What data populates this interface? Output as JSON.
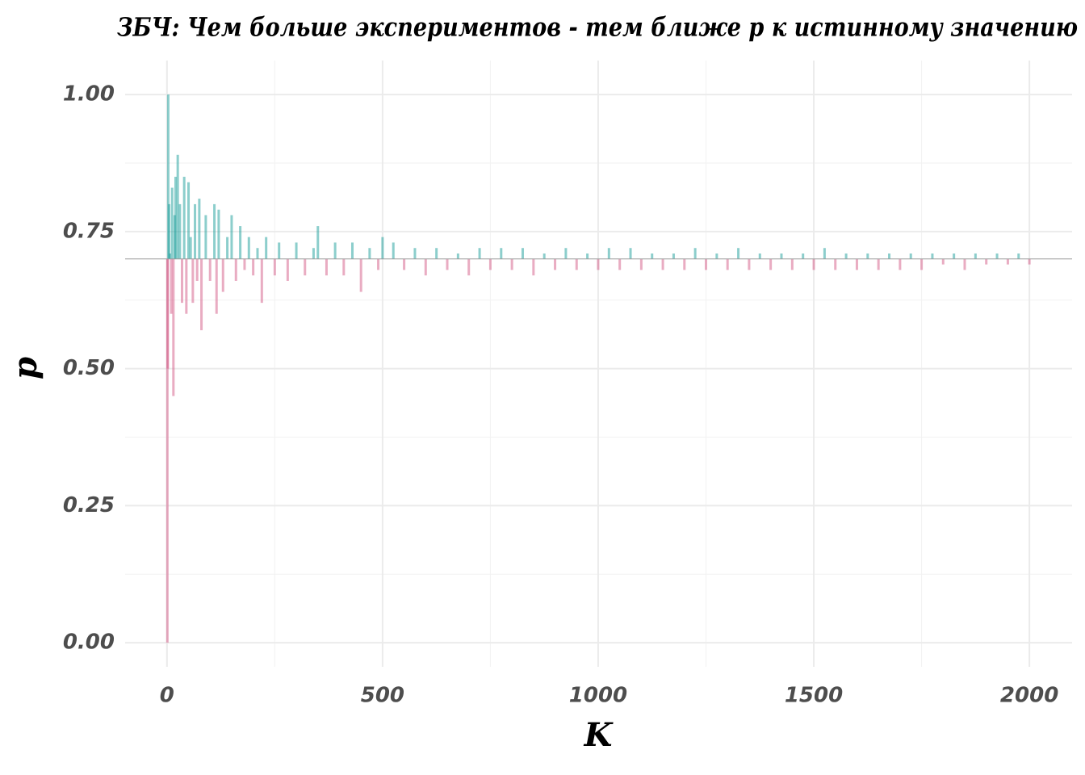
{
  "chart_data": {
    "type": "bar",
    "title": "ЗБЧ: Чем больше экспериментов - тем ближе p к истинному значению",
    "x_label": "K",
    "y_label": "p",
    "baseline": 0.7,
    "above_color": "#1a9e9a",
    "below_color": "#d45a86",
    "xlim": [
      -97,
      2099
    ],
    "ylim": [
      -0.044,
      1.062
    ],
    "xticks": [
      0,
      500,
      1000,
      1500,
      2000
    ],
    "yticks": [
      {
        "value": 0,
        "label": "0.00"
      },
      {
        "value": 0.25,
        "label": "0.25"
      },
      {
        "value": 0.5,
        "label": "0.50"
      },
      {
        "value": 0.75,
        "label": "0.75"
      },
      {
        "value": 1,
        "label": "1.00"
      }
    ],
    "xminor": [
      250,
      750,
      1250,
      1750
    ],
    "yminor": [
      0.125,
      0.375,
      0.625,
      0.875
    ],
    "grid": true,
    "x": [
      1,
      2,
      3,
      5,
      7,
      10,
      12,
      15,
      18,
      20,
      25,
      30,
      35,
      40,
      45,
      50,
      55,
      60,
      65,
      70,
      75,
      80,
      90,
      100,
      110,
      115,
      120,
      130,
      140,
      150,
      160,
      170,
      180,
      190,
      200,
      210,
      220,
      230,
      250,
      260,
      280,
      300,
      320,
      340,
      350,
      370,
      390,
      410,
      430,
      450,
      470,
      490,
      500,
      525,
      550,
      575,
      600,
      625,
      650,
      675,
      700,
      725,
      750,
      775,
      800,
      825,
      850,
      875,
      900,
      925,
      950,
      975,
      1000,
      1025,
      1050,
      1075,
      1100,
      1125,
      1150,
      1175,
      1200,
      1225,
      1250,
      1275,
      1300,
      1325,
      1350,
      1375,
      1400,
      1425,
      1450,
      1475,
      1500,
      1525,
      1550,
      1575,
      1600,
      1625,
      1650,
      1675,
      1700,
      1725,
      1750,
      1775,
      1800,
      1825,
      1850,
      1875,
      1900,
      1925,
      1950,
      1975,
      2000
    ],
    "values": [
      0.0,
      0.5,
      1.0,
      0.8,
      0.71,
      0.6,
      0.83,
      0.45,
      0.78,
      0.85,
      0.89,
      0.8,
      0.62,
      0.85,
      0.6,
      0.84,
      0.74,
      0.62,
      0.8,
      0.66,
      0.81,
      0.57,
      0.78,
      0.66,
      0.8,
      0.6,
      0.79,
      0.64,
      0.74,
      0.78,
      0.66,
      0.76,
      0.68,
      0.74,
      0.67,
      0.72,
      0.62,
      0.74,
      0.67,
      0.73,
      0.66,
      0.73,
      0.67,
      0.72,
      0.76,
      0.67,
      0.73,
      0.67,
      0.73,
      0.64,
      0.72,
      0.68,
      0.74,
      0.73,
      0.68,
      0.72,
      0.67,
      0.72,
      0.68,
      0.71,
      0.67,
      0.72,
      0.68,
      0.72,
      0.68,
      0.72,
      0.67,
      0.71,
      0.68,
      0.72,
      0.68,
      0.71,
      0.68,
      0.72,
      0.68,
      0.72,
      0.68,
      0.71,
      0.68,
      0.71,
      0.68,
      0.72,
      0.68,
      0.71,
      0.68,
      0.72,
      0.68,
      0.71,
      0.68,
      0.71,
      0.68,
      0.71,
      0.68,
      0.72,
      0.68,
      0.71,
      0.68,
      0.71,
      0.68,
      0.71,
      0.68,
      0.71,
      0.68,
      0.71,
      0.69,
      0.71,
      0.68,
      0.71,
      0.69,
      0.71,
      0.69,
      0.71,
      0.69
    ]
  }
}
